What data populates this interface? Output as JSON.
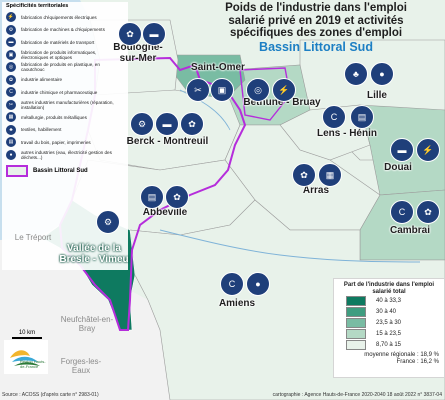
{
  "title": {
    "line1": "Poids de l'industrie dans l'emploi",
    "line2": "salarié privé en 2019 et activités",
    "line3": "spécifiques des zones d'emploi",
    "subtitle": "Bassin Littoral Sud"
  },
  "specificities_legend": {
    "heading": "Spécificités territoriales",
    "items": [
      {
        "label": "fabrication d'équipements électriques",
        "icon": "plug-icon",
        "glyph": "⚡"
      },
      {
        "label": "fabrication de machines & d'équipements",
        "icon": "gear-icon",
        "glyph": "⚙"
      },
      {
        "label": "fabrication de matériels de transport",
        "icon": "truck-icon",
        "glyph": "▬"
      },
      {
        "label": "fabrication de produits informatiques, électroniques et optiques",
        "icon": "chip-icon",
        "glyph": "▣"
      },
      {
        "label": "fabrication de produits en plastique, en caoutchouc",
        "icon": "tire-icon",
        "glyph": "◎"
      },
      {
        "label": "industrie alimentaire",
        "icon": "food-icon",
        "glyph": "✿"
      },
      {
        "label": "industrie chimique et pharmaceutique",
        "icon": "chemistry-icon",
        "glyph": "C"
      },
      {
        "label": "autres industries manufacturières (réparation, installation)",
        "icon": "tools-icon",
        "glyph": "✂"
      },
      {
        "label": "métallurgie, produits métalliques",
        "icon": "metal-icon",
        "glyph": "▦"
      },
      {
        "label": "textiles, habillement",
        "icon": "shirt-icon",
        "glyph": "♣"
      },
      {
        "label": "travail du bois, papier, imprimeries",
        "icon": "wood-icon",
        "glyph": "▤"
      },
      {
        "label": "autres industries (eau, électricité gestion des déchets...)",
        "icon": "water-drop-icon",
        "glyph": "●"
      }
    ],
    "bassin_label": "Bassin Littoral Sud"
  },
  "classes_legend": {
    "title": "Part de l'industrie dans l'emploi salarié total",
    "classes": [
      {
        "label": "40 à 33,3",
        "color": "#0e7a60"
      },
      {
        "label": "30 à 40",
        "color": "#3f9d80"
      },
      {
        "label": "23,5 à 30",
        "color": "#79bca3"
      },
      {
        "label": "15 à 23,5",
        "color": "#b4d9c5"
      },
      {
        "label": "8,70 à 15",
        "color": "#e8f2ea"
      }
    ],
    "average_line1": "moyenne régionale : 18,9 %",
    "average_line2": "France : 16,2 %"
  },
  "cities": [
    {
      "name": "Boulogne-sur-Mer"
    },
    {
      "name": "Saint-Omer"
    },
    {
      "name": "Béthune - Bruay"
    },
    {
      "name": "Lille"
    },
    {
      "name": "Berck - Montreuil"
    },
    {
      "name": "Lens - Hénin"
    },
    {
      "name": "Douai"
    },
    {
      "name": "Arras"
    },
    {
      "name": "Abbeville"
    },
    {
      "name": "Cambrai"
    },
    {
      "name": "Vallée de la Bresle - Vimeu"
    },
    {
      "name": "Amiens"
    }
  ],
  "outside_labels": {
    "le_treport": "Le Tréport",
    "neufchatel": "Neufchâtel-en-Bray",
    "forges": "Forges-les-Eaux"
  },
  "scale_label": "10 km",
  "logo_text": "Région Hauts-de-France",
  "source": "Source : ACOSS (d'après carte n° 2983-01)",
  "credit": "cartographie : Agence Hauts-de-France 2020-2040     18 août 2022 n° 3837-04",
  "colors": {
    "sea": "#c7dfee",
    "outside_land": "#f2f2f2",
    "border_bassin": "#b52ddb",
    "icon_fill": "#1f3f7a",
    "title_sub": "#1d7fc4"
  }
}
